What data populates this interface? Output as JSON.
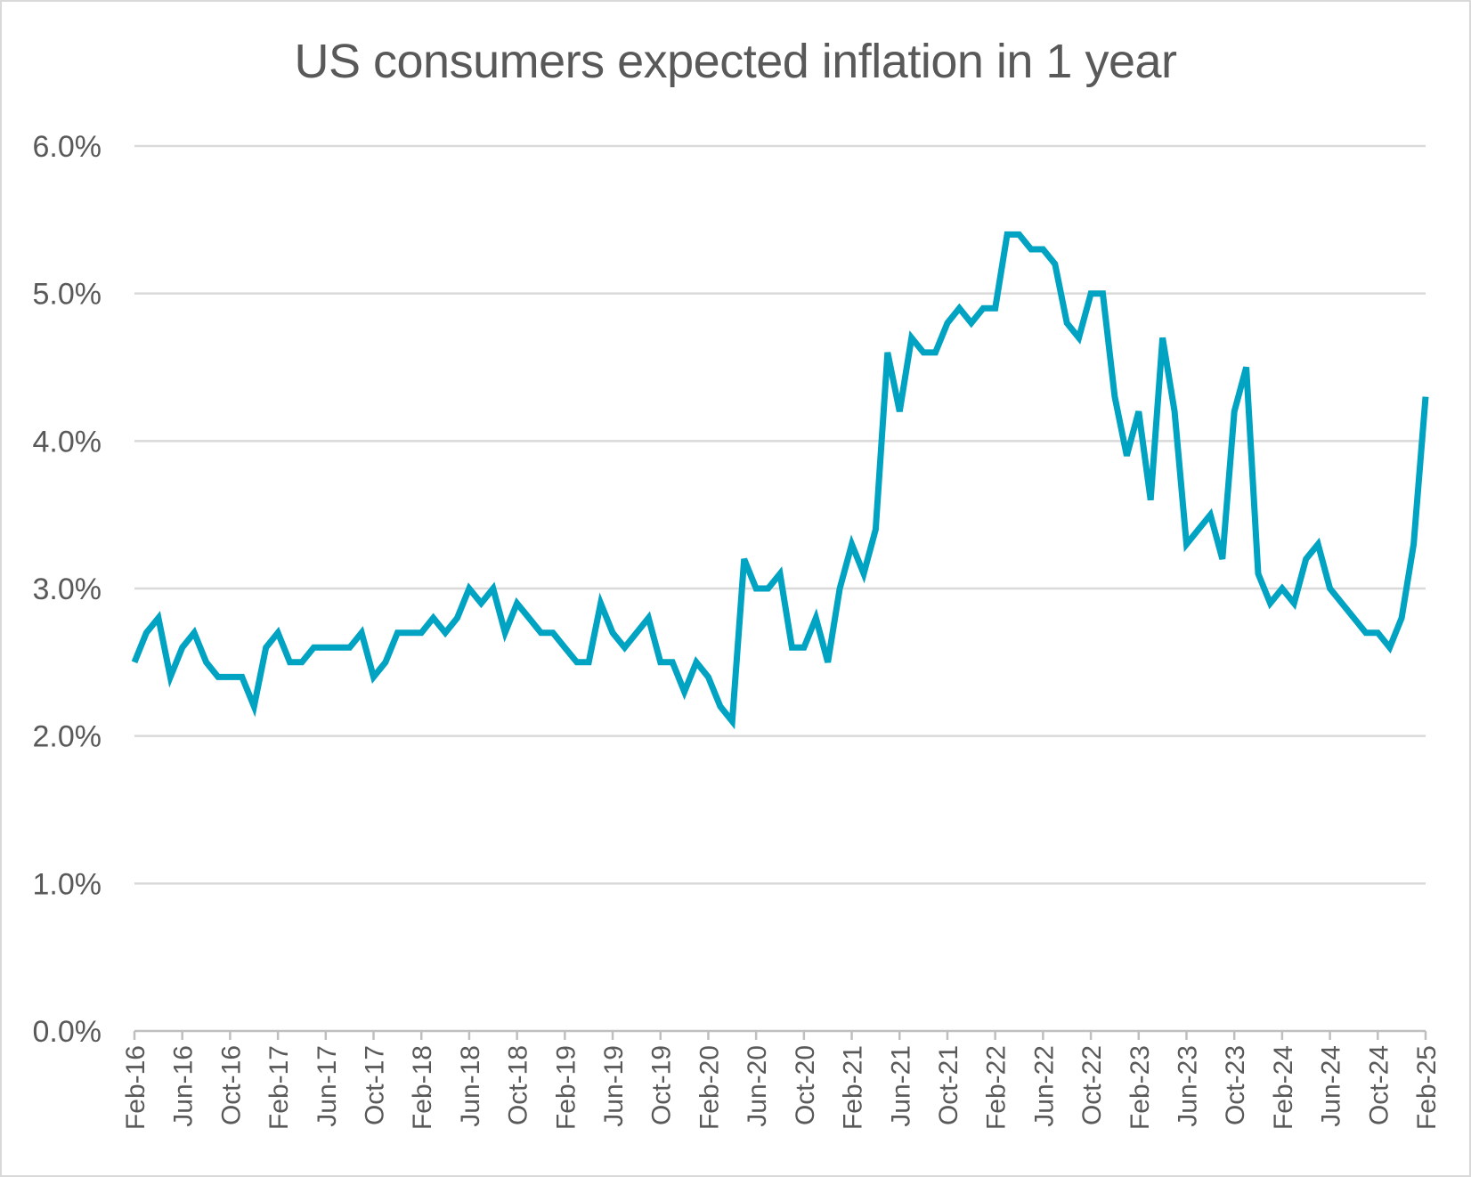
{
  "chart_data": {
    "type": "line",
    "title": "US consumers expected inflation in 1 year",
    "xlabel": "",
    "ylabel": "",
    "ylim": [
      0,
      6
    ],
    "y_ticks": [
      "0.0%",
      "1.0%",
      "2.0%",
      "3.0%",
      "4.0%",
      "5.0%",
      "6.0%"
    ],
    "x_tick_labels": [
      "Feb-16",
      "Jun-16",
      "Oct-16",
      "Feb-17",
      "Jun-17",
      "Oct-17",
      "Feb-18",
      "Jun-18",
      "Oct-18",
      "Feb-19",
      "Jun-19",
      "Oct-19",
      "Feb-20",
      "Jun-20",
      "Oct-20",
      "Feb-21",
      "Jun-21",
      "Oct-21",
      "Feb-22",
      "Jun-22",
      "Oct-22",
      "Feb-23",
      "Jun-23",
      "Oct-23",
      "Feb-24",
      "Jun-24",
      "Oct-24",
      "Feb-25"
    ],
    "grid": true,
    "legend": "none",
    "line_color": "#00a3c1",
    "series": [
      {
        "x": [
          "Feb-16",
          "Mar-16",
          "Apr-16",
          "May-16",
          "Jun-16",
          "Jul-16",
          "Aug-16",
          "Sep-16",
          "Oct-16",
          "Nov-16",
          "Dec-16",
          "Jan-17",
          "Feb-17",
          "Mar-17",
          "Apr-17",
          "May-17",
          "Jun-17",
          "Jul-17",
          "Aug-17",
          "Sep-17",
          "Oct-17",
          "Nov-17",
          "Dec-17",
          "Jan-18",
          "Feb-18",
          "Mar-18",
          "Apr-18",
          "May-18",
          "Jun-18",
          "Jul-18",
          "Aug-18",
          "Sep-18",
          "Oct-18",
          "Nov-18",
          "Dec-18",
          "Jan-19",
          "Feb-19",
          "Mar-19",
          "Apr-19",
          "May-19",
          "Jun-19",
          "Jul-19",
          "Aug-19",
          "Sep-19",
          "Oct-19",
          "Nov-19",
          "Dec-19",
          "Jan-20",
          "Feb-20",
          "Mar-20",
          "Apr-20",
          "May-20",
          "Jun-20",
          "Jul-20",
          "Aug-20",
          "Sep-20",
          "Oct-20",
          "Nov-20",
          "Dec-20",
          "Jan-21",
          "Feb-21",
          "Mar-21",
          "Apr-21",
          "May-21",
          "Jun-21",
          "Jul-21",
          "Aug-21",
          "Sep-21",
          "Oct-21",
          "Nov-21",
          "Dec-21",
          "Jan-22",
          "Feb-22",
          "Mar-22",
          "Apr-22",
          "May-22",
          "Jun-22",
          "Jul-22",
          "Aug-22",
          "Sep-22",
          "Oct-22",
          "Nov-22",
          "Dec-22",
          "Jan-23",
          "Feb-23",
          "Mar-23",
          "Apr-23",
          "May-23",
          "Jun-23",
          "Jul-23",
          "Aug-23",
          "Sep-23",
          "Oct-23",
          "Nov-23",
          "Dec-23",
          "Jan-24",
          "Feb-24",
          "Mar-24",
          "Apr-24",
          "May-24",
          "Jun-24",
          "Jul-24",
          "Aug-24",
          "Sep-24",
          "Oct-24",
          "Nov-24",
          "Dec-24",
          "Jan-25",
          "Feb-25"
        ],
        "values": [
          2.5,
          2.7,
          2.8,
          2.4,
          2.6,
          2.7,
          2.5,
          2.4,
          2.4,
          2.4,
          2.2,
          2.6,
          2.7,
          2.5,
          2.5,
          2.6,
          2.6,
          2.6,
          2.6,
          2.7,
          2.4,
          2.5,
          2.7,
          2.7,
          2.7,
          2.8,
          2.7,
          2.8,
          3.0,
          2.9,
          3.0,
          2.7,
          2.9,
          2.8,
          2.7,
          2.7,
          2.6,
          2.5,
          2.5,
          2.9,
          2.7,
          2.6,
          2.7,
          2.8,
          2.5,
          2.5,
          2.3,
          2.5,
          2.4,
          2.2,
          2.1,
          3.2,
          3.0,
          3.0,
          3.1,
          2.6,
          2.6,
          2.8,
          2.5,
          3.0,
          3.3,
          3.1,
          3.4,
          4.6,
          4.2,
          4.7,
          4.6,
          4.6,
          4.8,
          4.9,
          4.8,
          4.9,
          4.9,
          5.4,
          5.4,
          5.3,
          5.3,
          5.2,
          4.8,
          4.7,
          5.0,
          5.0,
          4.3,
          3.9,
          4.2,
          3.6,
          4.7,
          4.2,
          3.3,
          3.4,
          3.5,
          3.2,
          4.2,
          4.5,
          3.1,
          2.9,
          3.0,
          2.9,
          3.2,
          3.3,
          3.0,
          2.9,
          2.8,
          2.7,
          2.7,
          2.6,
          2.8,
          3.3,
          4.3
        ]
      }
    ]
  }
}
